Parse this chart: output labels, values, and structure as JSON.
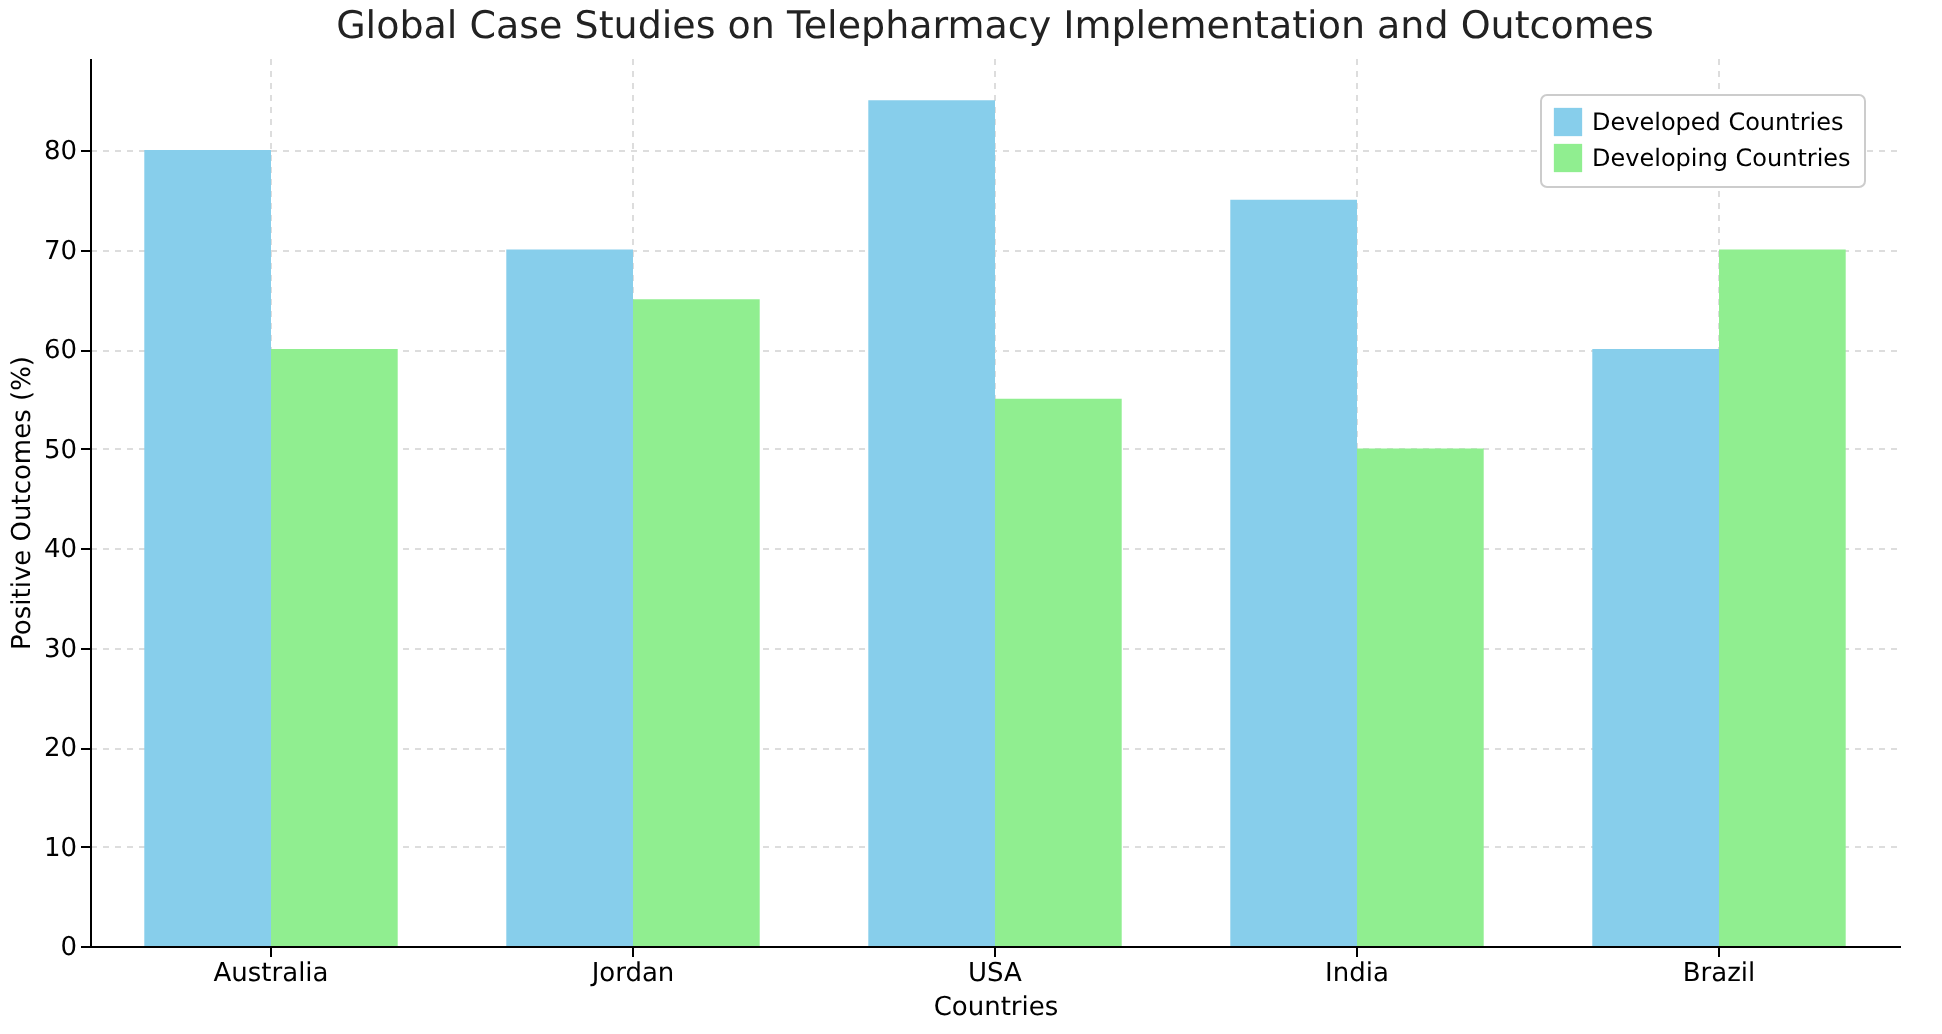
{
  "chart_data": {
    "type": "bar",
    "title": "Global Case Studies on Telepharmacy Implementation and Outcomes",
    "xlabel": "Countries",
    "ylabel": "Positive Outcomes (%)",
    "categories": [
      "Australia",
      "Jordan",
      "USA",
      "India",
      "Brazil"
    ],
    "series": [
      {
        "name": "Developed Countries",
        "color": "#87ceeb",
        "values": [
          80,
          70,
          85,
          75,
          60
        ]
      },
      {
        "name": "Developing Countries",
        "color": "#90ee90",
        "values": [
          60,
          65,
          55,
          50,
          70
        ]
      }
    ],
    "ylim": [
      0,
      89.25
    ],
    "yticks": [
      0,
      10,
      20,
      30,
      40,
      50,
      60,
      70,
      80
    ],
    "grid": true,
    "legend": "top right"
  }
}
